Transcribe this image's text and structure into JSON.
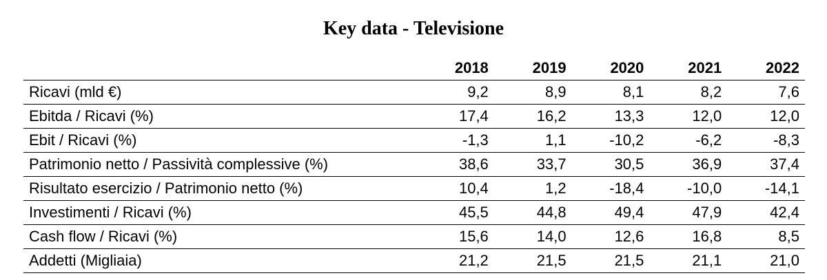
{
  "title": "Key data - Televisione",
  "chart_data": {
    "type": "table",
    "title": "Key data - Televisione",
    "columns": [
      "2018",
      "2019",
      "2020",
      "2021",
      "2022"
    ],
    "rows": [
      {
        "label": "Ricavi (mld €)",
        "values": [
          "9,2",
          "8,9",
          "8,1",
          "8,2",
          "7,6"
        ]
      },
      {
        "label": "Ebitda / Ricavi (%)",
        "values": [
          "17,4",
          "16,2",
          "13,3",
          "12,0",
          "12,0"
        ]
      },
      {
        "label": "Ebit / Ricavi (%)",
        "values": [
          "-1,3",
          "1,1",
          "-10,2",
          "-6,2",
          "-8,3"
        ]
      },
      {
        "label": "Patrimonio netto / Passività complessive (%)",
        "values": [
          "38,6",
          "33,7",
          "30,5",
          "36,9",
          "37,4"
        ]
      },
      {
        "label": "Risultato esercizio / Patrimonio netto (%)",
        "values": [
          "10,4",
          "1,2",
          "-18,4",
          "-10,0",
          "-14,1"
        ]
      },
      {
        "label": "Investimenti / Ricavi (%)",
        "values": [
          "45,5",
          "44,8",
          "49,4",
          "47,9",
          "42,4"
        ]
      },
      {
        "label": "Cash flow / Ricavi (%)",
        "values": [
          "15,6",
          "14,0",
          "12,6",
          "16,8",
          "8,5"
        ]
      },
      {
        "label": "Addetti (Migliaia)",
        "values": [
          "21,2",
          "21,5",
          "21,5",
          "21,1",
          "21,0"
        ]
      }
    ]
  }
}
